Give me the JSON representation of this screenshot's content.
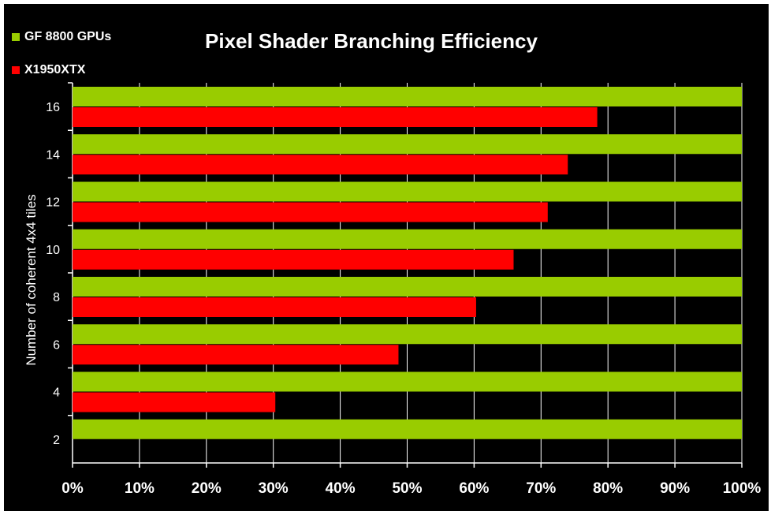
{
  "chart_data": {
    "type": "bar",
    "orientation": "horizontal",
    "title": "Pixel Shader Branching Efficiency",
    "xlabel": "",
    "ylabel": "Number of coherent 4x4 tiles",
    "categories": [
      "2",
      "4",
      "6",
      "8",
      "10",
      "12",
      "14",
      "16"
    ],
    "series": [
      {
        "name": "GF 8800 GPUs",
        "color": "#99cc00",
        "values": [
          100,
          100,
          100,
          100,
          100,
          100,
          100,
          100
        ]
      },
      {
        "name": "X1950XTX",
        "color": "#ff0000",
        "values": [
          null,
          30.3,
          48.7,
          60.3,
          65.9,
          71.0,
          74.0,
          78.4
        ]
      }
    ],
    "xlim": [
      0,
      100
    ],
    "xticks": [
      "0%",
      "10%",
      "20%",
      "30%",
      "40%",
      "50%",
      "60%",
      "70%",
      "80%",
      "90%",
      "100%"
    ],
    "grid": true,
    "legend_position": "top-left",
    "background": "#000000"
  }
}
